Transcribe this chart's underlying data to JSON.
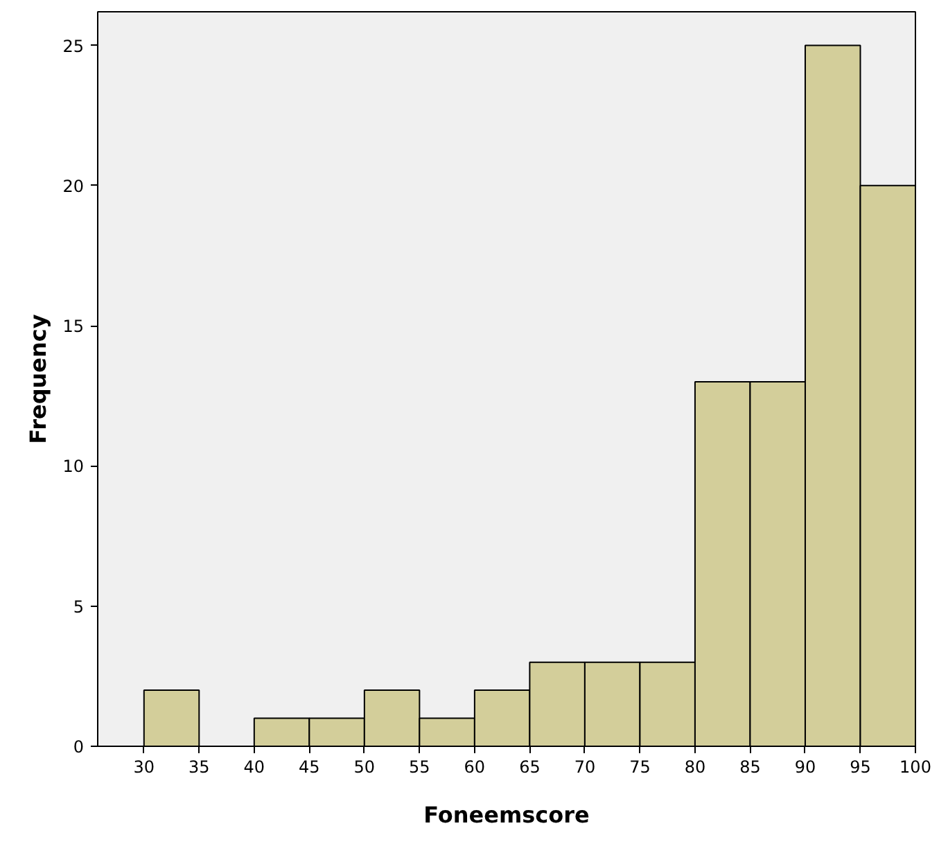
{
  "chart_data": {
    "type": "histogram",
    "xlabel": "Foneemscore",
    "ylabel": "Frequency",
    "bins": [
      30,
      35,
      40,
      45,
      50,
      55,
      60,
      65,
      70,
      75,
      80,
      85,
      90,
      95,
      100
    ],
    "values": [
      2,
      0,
      1,
      1,
      2,
      1,
      2,
      3,
      3,
      3,
      13,
      13,
      25,
      20
    ],
    "color": "#d3ce9a",
    "xlim": [
      25.8,
      100
    ],
    "ylim": [
      0,
      26.2
    ],
    "xticks": [
      30,
      35,
      40,
      45,
      50,
      55,
      60,
      65,
      70,
      75,
      80,
      85,
      90,
      95,
      100
    ],
    "yticks": [
      0,
      5,
      10,
      15,
      20,
      25
    ],
    "grid": false
  }
}
